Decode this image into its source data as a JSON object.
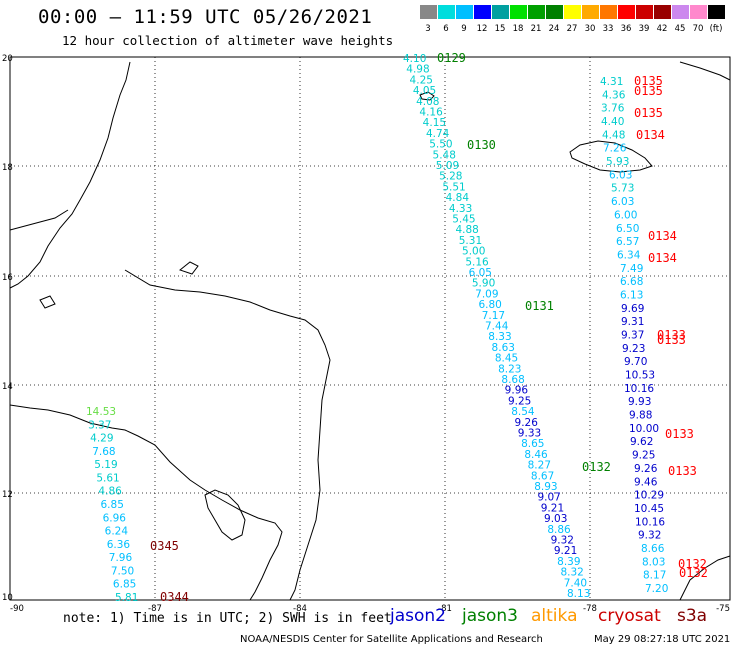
{
  "header": {
    "title": "00:00 – 11:59 UTC 05/26/2021",
    "subtitle": "12 hour collection of altimeter wave heights"
  },
  "legend": {
    "labels": [
      "3",
      "6",
      "9",
      "12",
      "15",
      "18",
      "21",
      "24",
      "27",
      "30",
      "33",
      "36",
      "39",
      "42",
      "45",
      "70",
      "(ft)"
    ],
    "colors": [
      "#888888",
      "#00dddd",
      "#00bfff",
      "#0000ff",
      "#00a0a0",
      "#00e000",
      "#00a000",
      "#008000",
      "#ffff00",
      "#ffaa00",
      "#ff7700",
      "#ff0000",
      "#cc0000",
      "#990000",
      "#cc88ee",
      "#ff88cc",
      "#000000"
    ]
  },
  "axes": {
    "lon_ticks": [
      "-90",
      "-87",
      "-84",
      "-81",
      "-78",
      "-75"
    ],
    "lat_ticks": [
      "20",
      "18",
      "16",
      "14",
      "12",
      "10"
    ]
  },
  "passes": [
    {
      "id": "0129",
      "color": "#008000"
    },
    {
      "id": "0130",
      "color": "#008000"
    },
    {
      "id": "0131",
      "color": "#008000"
    },
    {
      "id": "0132",
      "color": "#008000"
    },
    {
      "id": "0135a",
      "label": "0135",
      "color": "#ff0000"
    },
    {
      "id": "0135b",
      "label": "0135",
      "color": "#ff0000"
    },
    {
      "id": "0135c",
      "label": "0135",
      "color": "#ff0000"
    },
    {
      "id": "0134a",
      "label": "0134",
      "color": "#ff0000"
    },
    {
      "id": "0134b",
      "label": "0134",
      "color": "#ff0000"
    },
    {
      "id": "0134c",
      "label": "0134",
      "color": "#ff0000"
    },
    {
      "id": "0133a",
      "label": "0133",
      "color": "#ff0000"
    },
    {
      "id": "0133b",
      "label": "0133",
      "color": "#ff0000"
    },
    {
      "id": "0133c",
      "label": "0133",
      "color": "#ff0000"
    },
    {
      "id": "0133d",
      "label": "0133",
      "color": "#ff0000"
    },
    {
      "id": "0132a",
      "label": "0132",
      "color": "#ff0000"
    },
    {
      "id": "0132b",
      "label": "0132",
      "color": "#ff0000"
    },
    {
      "id": "0345",
      "color": "#800000"
    },
    {
      "id": "0344",
      "color": "#800000"
    }
  ],
  "track_jason3": [
    "4.10",
    "4.98",
    "4.25",
    "4.05",
    "4.08",
    "4.16",
    "4.15",
    "4.74",
    "5.50",
    "5.48",
    "5.09",
    "5.28",
    "5.51",
    "4.84",
    "4.33",
    "5.45",
    "4.88",
    "5.31",
    "5.00",
    "5.16",
    "6.05",
    "5.90",
    "7.09",
    "6.80",
    "7.17",
    "7.44",
    "8.33",
    "8.63",
    "8.45",
    "8.23",
    "8.68",
    "9.96",
    "9.25",
    "8.54",
    "9.26",
    "9.33",
    "8.65",
    "8.46",
    "8.27",
    "8.67",
    "8.93",
    "9.07",
    "9.21",
    "9.03",
    "8.86",
    "9.32",
    "9.21",
    "8.39",
    "8.32",
    "7.40",
    "8.13"
  ],
  "track_cryosat": [
    "4.31",
    "4.36",
    "3.76",
    "4.40",
    "4.48",
    "7.26",
    "5.93",
    "6.03",
    "5.73",
    "6.03",
    "6.00",
    "6.50",
    "6.57",
    "6.34",
    "7.49",
    "6.68",
    "6.13",
    "9.69",
    "9.31",
    "9.37",
    "9.23",
    "9.70",
    "10.53",
    "10.16",
    "9.93",
    "9.88",
    "10.00",
    "9.62",
    "9.25",
    "9.26",
    "9.46",
    "10.29",
    "10.45",
    "10.16",
    "9.32",
    "8.66",
    "8.03",
    "8.17",
    "7.20"
  ],
  "track_west": [
    "14.53",
    "3.37",
    "4.29",
    "7.68",
    "5.19",
    "5.61",
    "4.86",
    "6.85",
    "6.96",
    "6.24",
    "6.36",
    "7.96",
    "7.50",
    "6.85",
    "5.81"
  ],
  "footer": {
    "note": "note: 1) Time is in UTC; 2) SWH is in feet",
    "sat_jason2": "jason2",
    "sat_jason3": "jason3",
    "sat_altika": "altika",
    "sat_cryosat": "cryosat",
    "sat_s3a": "s3a",
    "credit": "NOAA/NESDIS Center for Satellite Applications and Research",
    "timestamp": "May 29 08:27:18 UTC 2021"
  }
}
